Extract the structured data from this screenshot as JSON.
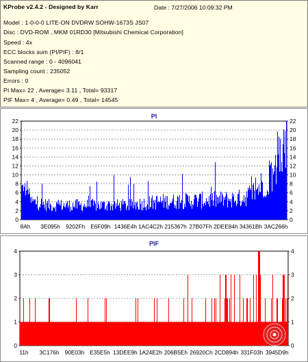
{
  "info": {
    "title": "KProbe v2.4.2 - Designed by Karr",
    "date": "Date : 7/27/2006 10:09:32 PM",
    "lines": [
      "Model : 1-0-0-0 LITE-ON DVDRW SOHW-1673S JS07",
      "Disc : DVD-ROM , MKM 01RD30   [Mitsubishi Chemical Corporation]",
      "Speed : 4x",
      "ECC blocks sum (PI/PIF) : 8/1",
      "Scanned range : 0 - 4096041",
      "Sampling count : 235052",
      "Errors : 0",
      "PI Max= 22 , Average= 3.11 , Total= 93317",
      "PIF Max= 4 , Average= 0.49 , Total= 14545"
    ]
  },
  "chart_data": [
    {
      "type": "bar",
      "title": "PI",
      "ylim": [
        0,
        22
      ],
      "yticks": [
        0,
        2,
        4,
        6,
        8,
        10,
        12,
        14,
        16,
        18,
        20,
        22
      ],
      "xticks": [
        "8Ah",
        "3E095h",
        "9202Fh",
        "E6F09h",
        "1436E4h",
        "1AC4C2h",
        "215367h",
        "27B07Fh",
        "2DEE84h",
        "34361Bh",
        "3AC266h"
      ],
      "bar_color": "#0000ff",
      "grid": true,
      "max": 22,
      "average": 3.11,
      "total": 93317
    },
    {
      "type": "bar",
      "title": "PIF",
      "ylim": [
        0,
        4
      ],
      "yticks": [
        0,
        1,
        2,
        3,
        4
      ],
      "xticks": [
        "11h",
        "3C176h",
        "90E03h",
        "E35E5h",
        "13DEE9h",
        "1A24E2h",
        "206B5Eh",
        "26920Ch",
        "2CD894h",
        "331F03h",
        "3945D9h"
      ],
      "bar_color": "#ff0000",
      "grid": true,
      "max": 4,
      "average": 0.49,
      "total": 14545
    }
  ],
  "colors": {
    "info_bg": "#fffde3",
    "pi_bar": "#0000ff",
    "pif_bar": "#ff0000",
    "grid": "#9a9a9a"
  },
  "icons": {
    "watermark": "disc-icon"
  }
}
